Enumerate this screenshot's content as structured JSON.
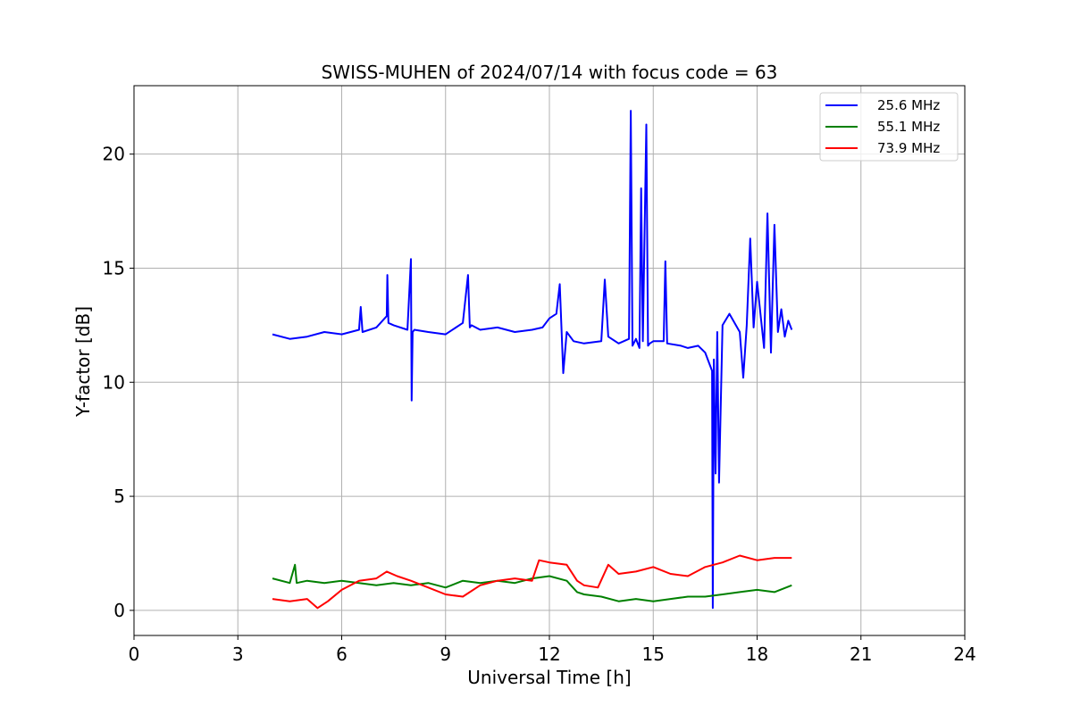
{
  "chart_data": {
    "type": "line",
    "title": "SWISS-MUHEN of 2024/07/14 with focus code = 63",
    "xlabel": "Universal Time [h]",
    "ylabel": "Y-factor [dB]",
    "xlim": [
      0,
      24
    ],
    "ylim": [
      -1.1,
      23.0
    ],
    "xticks": [
      0,
      3,
      6,
      9,
      12,
      15,
      18,
      21,
      24
    ],
    "yticks": [
      0,
      5,
      10,
      15,
      20
    ],
    "xtick_labels": [
      "0",
      "3",
      "6",
      "9",
      "12",
      "15",
      "18",
      "21",
      "24"
    ],
    "ytick_labels": [
      "0",
      "5",
      "10",
      "15",
      "20"
    ],
    "grid": true,
    "legend_position": "top-right",
    "series": [
      {
        "name": "25.6 MHz",
        "color": "#0000ff",
        "x": [
          4.0,
          4.5,
          5.0,
          5.5,
          6.0,
          6.5,
          6.55,
          6.6,
          7.0,
          7.3,
          7.32,
          7.35,
          7.5,
          7.9,
          8.0,
          8.02,
          8.05,
          8.1,
          8.5,
          9.0,
          9.5,
          9.65,
          9.7,
          9.75,
          10.0,
          10.5,
          11.0,
          11.5,
          11.8,
          12.0,
          12.2,
          12.3,
          12.4,
          12.5,
          12.7,
          13.0,
          13.5,
          13.6,
          13.7,
          14.0,
          14.3,
          14.35,
          14.4,
          14.5,
          14.6,
          14.65,
          14.7,
          14.8,
          14.85,
          14.9,
          15.0,
          15.3,
          15.35,
          15.4,
          15.8,
          16.0,
          16.3,
          16.5,
          16.7,
          16.72,
          16.75,
          16.8,
          16.85,
          16.9,
          17.0,
          17.2,
          17.5,
          17.6,
          17.7,
          17.8,
          17.9,
          18.0,
          18.2,
          18.3,
          18.4,
          18.5,
          18.6,
          18.7,
          18.8,
          18.9,
          19.0
        ],
        "y": [
          12.1,
          11.9,
          12.0,
          12.2,
          12.1,
          12.3,
          13.3,
          12.2,
          12.4,
          12.9,
          14.7,
          12.6,
          12.5,
          12.3,
          15.4,
          9.2,
          12.2,
          12.3,
          12.2,
          12.1,
          12.6,
          14.7,
          12.4,
          12.5,
          12.3,
          12.4,
          12.2,
          12.3,
          12.4,
          12.8,
          13.0,
          14.3,
          10.4,
          12.2,
          11.8,
          11.7,
          11.8,
          14.5,
          12.0,
          11.7,
          11.9,
          21.9,
          11.6,
          11.9,
          11.5,
          18.5,
          11.8,
          21.3,
          11.6,
          11.7,
          11.8,
          11.8,
          15.3,
          11.7,
          11.6,
          11.5,
          11.6,
          11.3,
          10.5,
          0.1,
          11.0,
          6.0,
          12.2,
          5.6,
          12.5,
          13.0,
          12.2,
          10.2,
          12.5,
          16.3,
          12.4,
          14.4,
          11.5,
          17.4,
          11.3,
          16.9,
          12.2,
          13.2,
          12.0,
          12.7,
          12.3
        ]
      },
      {
        "name": "55.1 MHz",
        "color": "#008000",
        "x": [
          4.0,
          4.5,
          4.65,
          4.7,
          5.0,
          5.5,
          6.0,
          6.5,
          7.0,
          7.5,
          8.0,
          8.5,
          9.0,
          9.5,
          10.0,
          10.5,
          11.0,
          11.5,
          12.0,
          12.5,
          12.8,
          13.0,
          13.5,
          14.0,
          14.5,
          15.0,
          15.5,
          16.0,
          16.5,
          17.0,
          17.5,
          18.0,
          18.5,
          19.0
        ],
        "y": [
          1.4,
          1.2,
          2.0,
          1.2,
          1.3,
          1.2,
          1.3,
          1.2,
          1.1,
          1.2,
          1.1,
          1.2,
          1.0,
          1.3,
          1.2,
          1.3,
          1.2,
          1.4,
          1.5,
          1.3,
          0.8,
          0.7,
          0.6,
          0.4,
          0.5,
          0.4,
          0.5,
          0.6,
          0.6,
          0.7,
          0.8,
          0.9,
          0.8,
          1.1
        ]
      },
      {
        "name": "73.9 MHz",
        "color": "#ff0000",
        "x": [
          4.0,
          4.5,
          5.0,
          5.3,
          5.6,
          6.0,
          6.5,
          7.0,
          7.3,
          7.6,
          8.0,
          8.5,
          9.0,
          9.5,
          10.0,
          10.5,
          11.0,
          11.5,
          11.7,
          12.0,
          12.5,
          12.8,
          13.0,
          13.4,
          13.7,
          14.0,
          14.5,
          15.0,
          15.5,
          16.0,
          16.5,
          17.0,
          17.5,
          18.0,
          18.5,
          19.0
        ],
        "y": [
          0.5,
          0.4,
          0.5,
          0.1,
          0.4,
          0.9,
          1.3,
          1.4,
          1.7,
          1.5,
          1.3,
          1.0,
          0.7,
          0.6,
          1.1,
          1.3,
          1.4,
          1.3,
          2.2,
          2.1,
          2.0,
          1.3,
          1.1,
          1.0,
          2.0,
          1.6,
          1.7,
          1.9,
          1.6,
          1.5,
          1.9,
          2.1,
          2.4,
          2.2,
          2.3,
          2.3
        ]
      }
    ]
  }
}
